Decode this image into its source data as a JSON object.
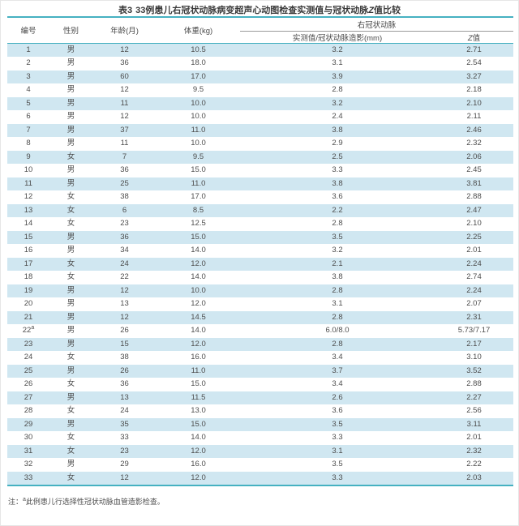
{
  "page": {
    "title": {
      "label": "表3",
      "pre": "33例患儿右冠状动脉病变超声心动图检查实测值与冠状动脉",
      "z": "Z",
      "post": "值比较"
    }
  },
  "table": {
    "columns": [
      "编号",
      "性别",
      "年龄(月)",
      "体重(kg)"
    ],
    "group_header": "右冠状动脉",
    "sub_columns": {
      "measured": "实测值/冠状动脉造影(mm)",
      "z_italic": "Z",
      "z_post": "值"
    },
    "rows": [
      [
        "1",
        "男",
        "12",
        "10.5",
        "3.2",
        "2.71"
      ],
      [
        "2",
        "男",
        "36",
        "18.0",
        "3.1",
        "2.54"
      ],
      [
        "3",
        "男",
        "60",
        "17.0",
        "3.9",
        "3.27"
      ],
      [
        "4",
        "男",
        "12",
        "9.5",
        "2.8",
        "2.18"
      ],
      [
        "5",
        "男",
        "11",
        "10.0",
        "3.2",
        "2.10"
      ],
      [
        "6",
        "男",
        "12",
        "10.0",
        "2.4",
        "2.11"
      ],
      [
        "7",
        "男",
        "37",
        "11.0",
        "3.8",
        "2.46"
      ],
      [
        "8",
        "男",
        "11",
        "10.0",
        "2.9",
        "2.32"
      ],
      [
        "9",
        "女",
        "7",
        "9.5",
        "2.5",
        "2.06"
      ],
      [
        "10",
        "男",
        "36",
        "15.0",
        "3.3",
        "2.45"
      ],
      [
        "11",
        "男",
        "25",
        "11.0",
        "3.8",
        "3.81"
      ],
      [
        "12",
        "女",
        "38",
        "17.0",
        "3.6",
        "2.88"
      ],
      [
        "13",
        "女",
        "6",
        "8.5",
        "2.2",
        "2.47"
      ],
      [
        "14",
        "女",
        "23",
        "12.5",
        "2.8",
        "2.10"
      ],
      [
        "15",
        "男",
        "36",
        "15.0",
        "3.5",
        "2.25"
      ],
      [
        "16",
        "男",
        "34",
        "14.0",
        "3.2",
        "2.01"
      ],
      [
        "17",
        "女",
        "24",
        "12.0",
        "2.1",
        "2.24"
      ],
      [
        "18",
        "女",
        "22",
        "14.0",
        "3.8",
        "2.74"
      ],
      [
        "19",
        "男",
        "12",
        "10.0",
        "2.8",
        "2.24"
      ],
      [
        "20",
        "男",
        "13",
        "12.0",
        "3.1",
        "2.07"
      ],
      [
        "21",
        "男",
        "12",
        "14.5",
        "2.8",
        "2.31"
      ],
      [
        "22",
        "男",
        "26",
        "14.0",
        "6.0/8.0",
        "5.73/7.17",
        "a"
      ],
      [
        "23",
        "男",
        "15",
        "12.0",
        "2.8",
        "2.17"
      ],
      [
        "24",
        "女",
        "38",
        "16.0",
        "3.4",
        "3.10"
      ],
      [
        "25",
        "男",
        "26",
        "11.0",
        "3.7",
        "3.52"
      ],
      [
        "26",
        "女",
        "36",
        "15.0",
        "3.4",
        "2.88"
      ],
      [
        "27",
        "男",
        "13",
        "11.5",
        "2.6",
        "2.27"
      ],
      [
        "28",
        "女",
        "24",
        "13.0",
        "3.6",
        "2.56"
      ],
      [
        "29",
        "男",
        "35",
        "15.0",
        "3.5",
        "3.11"
      ],
      [
        "30",
        "女",
        "33",
        "14.0",
        "3.3",
        "2.01"
      ],
      [
        "31",
        "女",
        "23",
        "12.0",
        "3.1",
        "2.32"
      ],
      [
        "32",
        "男",
        "29",
        "16.0",
        "3.5",
        "2.22"
      ],
      [
        "33",
        "女",
        "12",
        "12.0",
        "3.3",
        "2.03"
      ]
    ]
  },
  "note": {
    "prefix": "注：",
    "sup": "a",
    "text": "此例患儿行选择性冠状动脉血管造影检查。"
  },
  "colors": {
    "accent_teal": "#46b1c1",
    "row_stripe": "#d0e7f1"
  }
}
